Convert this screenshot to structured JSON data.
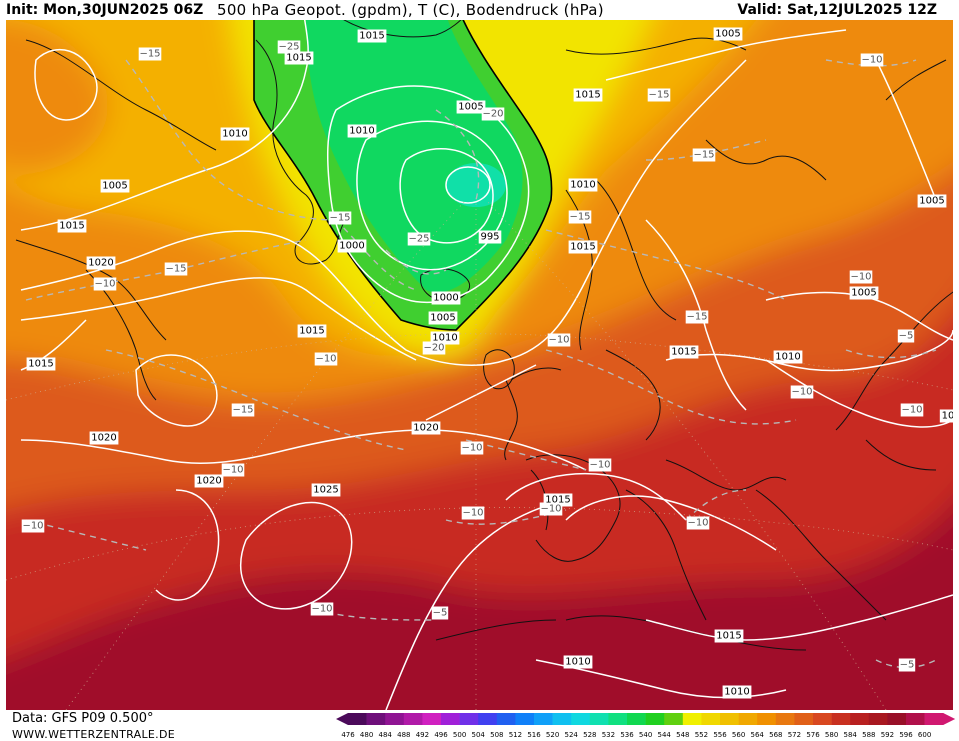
{
  "header": {
    "init": "Init: Mon,30JUN2025 06Z",
    "title": "500 hPa Geopot. (gpdm), T (C), Bodendruck (hPa)",
    "valid": "Valid: Sat,12JUL2025 12Z"
  },
  "footer": {
    "data_source": "Data: GFS P09 0.500°",
    "website": "WWW.WETTERZENTRALE.DE"
  },
  "colorbar": {
    "ticks": [
      "476",
      "480",
      "484",
      "488",
      "492",
      "496",
      "500",
      "504",
      "508",
      "512",
      "516",
      "520",
      "524",
      "528",
      "532",
      "536",
      "540",
      "544",
      "548",
      "552",
      "556",
      "560",
      "564",
      "568",
      "572",
      "576",
      "580",
      "584",
      "588",
      "592",
      "596",
      "600"
    ],
    "colors": [
      "#4b0a5a",
      "#6e0f7a",
      "#8f1493",
      "#b01aa8",
      "#d020c0",
      "#a020d8",
      "#7030e8",
      "#4040f0",
      "#2060f0",
      "#1080f8",
      "#10a0f8",
      "#10c0f0",
      "#10d8e0",
      "#10e0b0",
      "#10e080",
      "#10d850",
      "#20d020",
      "#60d010",
      "#f0f000",
      "#f0d800",
      "#f0c000",
      "#f0a800",
      "#f09000",
      "#e87810",
      "#e06018",
      "#d84820",
      "#c83020",
      "#b82020",
      "#a81820",
      "#981028",
      "#b0104a",
      "#d01870"
    ]
  },
  "map": {
    "colors": {
      "ridge_south": "#a0102c",
      "warm_core": "#c82a22",
      "mid_orange": "#dd5a1c",
      "orange": "#ee8a10",
      "yellow_orange": "#f4b000",
      "yellow": "#f2e400",
      "green_light": "#40cf30",
      "green": "#10d860",
      "green_core": "#10e0a8",
      "isobar": "#ffffff",
      "isotherm": "#b8b8b8",
      "coast": "#111111"
    },
    "isobar_labels": [
      {
        "id": "p1015a",
        "text": "1015"
      },
      {
        "id": "p1015b",
        "text": "1015"
      },
      {
        "id": "p1005a",
        "text": "1005"
      },
      {
        "id": "p1015c",
        "text": "1015"
      },
      {
        "id": "p1010a",
        "text": "1010"
      },
      {
        "id": "p1010b",
        "text": "1010"
      },
      {
        "id": "p1005b",
        "text": "1005"
      },
      {
        "id": "p1005c",
        "text": "1005"
      },
      {
        "id": "p1010c",
        "text": "1010"
      },
      {
        "id": "p1015d",
        "text": "1015"
      },
      {
        "id": "p1005d",
        "text": "1005"
      },
      {
        "id": "p1015e",
        "text": "1015"
      },
      {
        "id": "p1020a",
        "text": "1020"
      },
      {
        "id": "p1000a",
        "text": "1000"
      },
      {
        "id": "p995",
        "text": "995"
      },
      {
        "id": "p1000b",
        "text": "1000"
      },
      {
        "id": "p1005e",
        "text": "1005"
      },
      {
        "id": "p1010d",
        "text": "1010"
      },
      {
        "id": "p1015f",
        "text": "1015"
      },
      {
        "id": "p1015g",
        "text": "1015"
      },
      {
        "id": "p1005f",
        "text": "1005"
      },
      {
        "id": "p1015h",
        "text": "1015"
      },
      {
        "id": "p1010e",
        "text": "1010"
      },
      {
        "id": "p1020b",
        "text": "1020"
      },
      {
        "id": "p1020c",
        "text": "1020"
      },
      {
        "id": "p1020d",
        "text": "1020"
      },
      {
        "id": "p1025",
        "text": "1025"
      },
      {
        "id": "p1015i",
        "text": "1015"
      },
      {
        "id": "p1015j",
        "text": "1015"
      },
      {
        "id": "p1010f",
        "text": "1010"
      },
      {
        "id": "p1010g",
        "text": "1010"
      },
      {
        "id": "p10",
        "text": "10"
      }
    ],
    "isotherm_labels": [
      {
        "id": "t1",
        "text": "−15"
      },
      {
        "id": "t2",
        "text": "−25"
      },
      {
        "id": "t3",
        "text": "−20"
      },
      {
        "id": "t4",
        "text": "−15"
      },
      {
        "id": "t5",
        "text": "−10"
      },
      {
        "id": "t6",
        "text": "−15"
      },
      {
        "id": "t7",
        "text": "−15"
      },
      {
        "id": "t8",
        "text": "−25"
      },
      {
        "id": "t9",
        "text": "−15"
      },
      {
        "id": "t10",
        "text": "−15"
      },
      {
        "id": "t11",
        "text": "−10"
      },
      {
        "id": "t12",
        "text": "−10"
      },
      {
        "id": "t13",
        "text": "−15"
      },
      {
        "id": "t14",
        "text": "−20"
      },
      {
        "id": "t15",
        "text": "−10"
      },
      {
        "id": "t16",
        "text": "−15"
      },
      {
        "id": "t17",
        "text": "−10"
      },
      {
        "id": "t18",
        "text": "−10"
      },
      {
        "id": "t19",
        "text": "−10"
      },
      {
        "id": "t20",
        "text": "−10"
      },
      {
        "id": "t21",
        "text": "−10"
      },
      {
        "id": "t22",
        "text": "−10"
      },
      {
        "id": "t23",
        "text": "−10"
      },
      {
        "id": "t24",
        "text": "−10"
      },
      {
        "id": "t25",
        "text": "−10"
      },
      {
        "id": "t26",
        "text": "−5"
      },
      {
        "id": "t27",
        "text": "−5"
      },
      {
        "id": "t28",
        "text": "−5"
      },
      {
        "id": "t29",
        "text": "−10"
      },
      {
        "id": "t30",
        "text": "−10"
      }
    ]
  }
}
